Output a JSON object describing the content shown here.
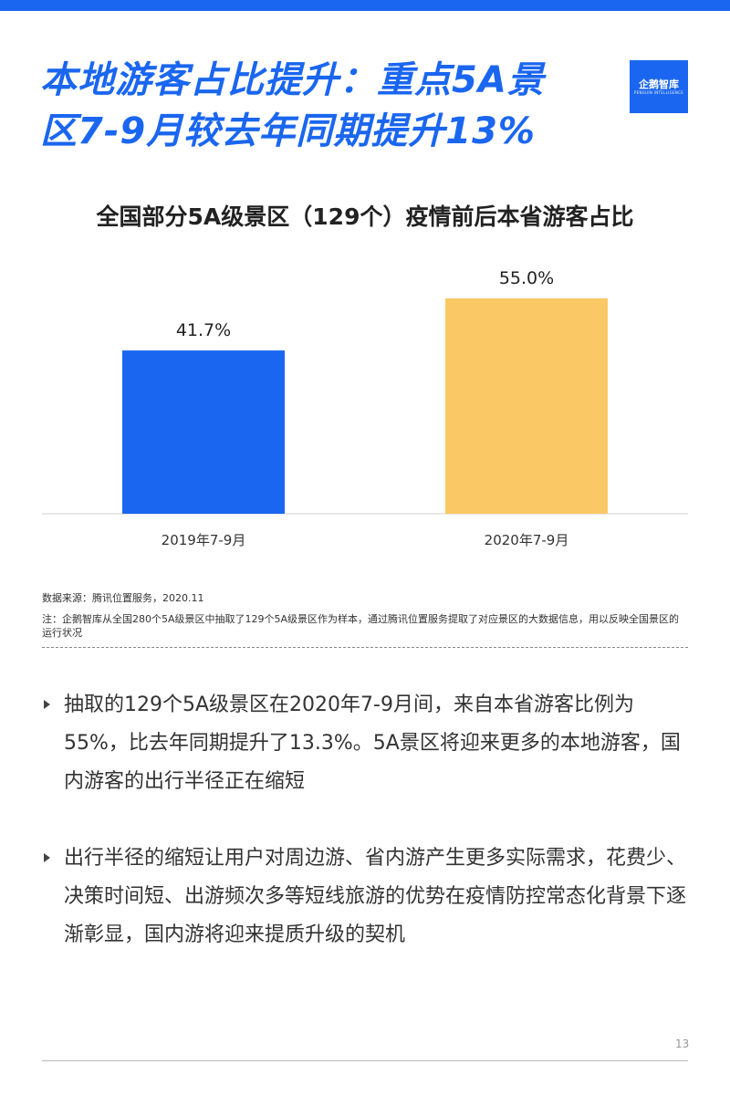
{
  "headline": {
    "line1": "本地游客占比提升：重点5A景",
    "line2": "区7-9月较去年同期提升13%"
  },
  "logo": {
    "text": "企鹅智库",
    "subtext": "PENGUIN INTELLIGENCE"
  },
  "colors": {
    "brand": "#1a66f0",
    "bar_2019": "#1a66f0",
    "bar_2020": "#fac864"
  },
  "chart_data": {
    "type": "bar",
    "title": "全国部分5A级景区（129个）疫情前后本省游客占比",
    "categories": [
      "2019年7-9月",
      "2020年7-9月"
    ],
    "values": [
      41.7,
      55.0
    ],
    "data_labels": [
      "41.7%",
      "55.0%"
    ],
    "colors": [
      "#1a66f0",
      "#fac864"
    ],
    "xlabel": "",
    "ylabel": "",
    "ylim": [
      0,
      55.0
    ],
    "grid": false,
    "legend": "none"
  },
  "source": "数据来源：腾讯位置服务，2020.11",
  "note": "注：企鹅智库从全国280个5A级景区中抽取了129个5A级景区作为样本，通过腾讯位置服务提取了对应景区的大数据信息，用以反映全国景区的运行状况",
  "bullets": [
    "抽取的129个5A级景区在2020年7-9月间，来自本省游客比例为55%，比去年同期提升了13.3%。5A景区将迎来更多的本地游客，国内游客的出行半径正在缩短",
    "出行半径的缩短让用户对周边游、省内游产生更多实际需求，花费少、决策时间短、出游频次多等短线旅游的优势在疫情防控常态化背景下逐渐彰显，国内游将迎来提质升级的契机"
  ],
  "page_number": "13"
}
